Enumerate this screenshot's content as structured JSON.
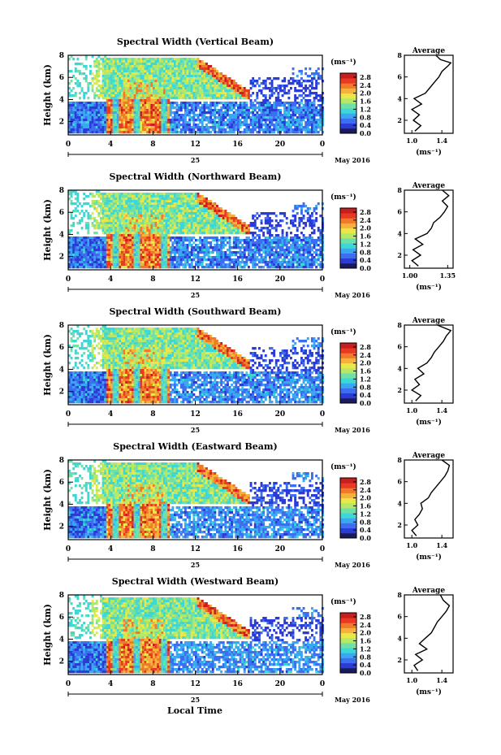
{
  "chart_data": {
    "type": "heatmap",
    "colors": {
      "scale": [
        "#1a1a5c",
        "#2b3bd6",
        "#3b6ff0",
        "#39a8f0",
        "#3fd6d6",
        "#6fe0a8",
        "#b4e868",
        "#e8e84a",
        "#f5b23a",
        "#f07a2a",
        "#e83a22",
        "#c81e1e"
      ],
      "average_line": "#000000"
    },
    "shared": {
      "x_ticks": [
        "0",
        "4",
        "8",
        "12",
        "16",
        "20",
        "0"
      ],
      "day_label": "25",
      "month_label": "May 2016",
      "xlabel": "Local Time",
      "ylabel": "Height (km)",
      "y_ticks": [
        "2",
        "4",
        "6",
        "8"
      ],
      "y_range_km": [
        0.8,
        8
      ],
      "x_range_hours": [
        0,
        24
      ],
      "colorbar_unit": "(ms⁻¹)",
      "colorbar_ticks": [
        "0.0",
        "0.4",
        "0.8",
        "1.2",
        "1.6",
        "2.0",
        "2.4",
        "2.8"
      ],
      "colorbar_range": [
        0.0,
        3.0
      ],
      "average_title": "Average",
      "average_xlabel": "(ms⁻¹)",
      "average_y_ticks": [
        "2",
        "4",
        "6",
        "8"
      ]
    },
    "panels": [
      {
        "title": "Spectral Width (Vertical Beam)",
        "average_x_ticks": [
          "1.0",
          "1.4"
        ],
        "average_xlim": [
          0.9,
          1.55
        ],
        "average_profile": [
          {
            "h": 1.0,
            "v": 1.04
          },
          {
            "h": 1.5,
            "v": 1.12
          },
          {
            "h": 2.0,
            "v": 1.02
          },
          {
            "h": 2.5,
            "v": 1.1
          },
          {
            "h": 3.0,
            "v": 1.0
          },
          {
            "h": 3.5,
            "v": 1.13
          },
          {
            "h": 4.0,
            "v": 1.03
          },
          {
            "h": 4.5,
            "v": 1.18
          },
          {
            "h": 5.0,
            "v": 1.24
          },
          {
            "h": 5.5,
            "v": 1.3
          },
          {
            "h": 6.0,
            "v": 1.36
          },
          {
            "h": 6.5,
            "v": 1.4
          },
          {
            "h": 7.0,
            "v": 1.48
          },
          {
            "h": 7.3,
            "v": 1.52
          },
          {
            "h": 7.6,
            "v": 1.38
          },
          {
            "h": 8.0,
            "v": 1.32
          }
        ]
      },
      {
        "title": "Spectral Width (Northward Beam)",
        "average_x_ticks": [
          "1.00",
          "1.35"
        ],
        "average_xlim": [
          0.95,
          1.4
        ],
        "average_profile": [
          {
            "h": 1.0,
            "v": 1.08
          },
          {
            "h": 1.5,
            "v": 1.02
          },
          {
            "h": 2.0,
            "v": 1.1
          },
          {
            "h": 2.5,
            "v": 1.03
          },
          {
            "h": 3.0,
            "v": 1.12
          },
          {
            "h": 3.5,
            "v": 1.05
          },
          {
            "h": 4.0,
            "v": 1.16
          },
          {
            "h": 4.5,
            "v": 1.2
          },
          {
            "h": 5.0,
            "v": 1.22
          },
          {
            "h": 5.5,
            "v": 1.28
          },
          {
            "h": 6.0,
            "v": 1.32
          },
          {
            "h": 6.5,
            "v": 1.35
          },
          {
            "h": 7.0,
            "v": 1.3
          },
          {
            "h": 7.5,
            "v": 1.36
          },
          {
            "h": 8.0,
            "v": 1.3
          }
        ]
      },
      {
        "title": "Spectral Width (Southward Beam)",
        "average_x_ticks": [
          "1.0",
          "1.4"
        ],
        "average_xlim": [
          0.9,
          1.55
        ],
        "average_profile": [
          {
            "h": 1.0,
            "v": 1.05
          },
          {
            "h": 1.5,
            "v": 1.12
          },
          {
            "h": 2.0,
            "v": 1.0
          },
          {
            "h": 2.5,
            "v": 1.1
          },
          {
            "h": 3.0,
            "v": 1.04
          },
          {
            "h": 3.5,
            "v": 1.16
          },
          {
            "h": 4.0,
            "v": 1.08
          },
          {
            "h": 4.5,
            "v": 1.2
          },
          {
            "h": 5.0,
            "v": 1.26
          },
          {
            "h": 5.5,
            "v": 1.3
          },
          {
            "h": 6.0,
            "v": 1.36
          },
          {
            "h": 6.5,
            "v": 1.42
          },
          {
            "h": 7.0,
            "v": 1.46
          },
          {
            "h": 7.5,
            "v": 1.52
          },
          {
            "h": 8.0,
            "v": 1.34
          }
        ]
      },
      {
        "title": "Spectral Width (Eastward Beam)",
        "average_x_ticks": [
          "1.0",
          "1.4"
        ],
        "average_xlim": [
          0.9,
          1.55
        ],
        "average_profile": [
          {
            "h": 1.0,
            "v": 1.06
          },
          {
            "h": 1.5,
            "v": 1.0
          },
          {
            "h": 2.0,
            "v": 1.08
          },
          {
            "h": 2.5,
            "v": 1.04
          },
          {
            "h": 3.0,
            "v": 1.1
          },
          {
            "h": 3.5,
            "v": 1.14
          },
          {
            "h": 4.0,
            "v": 1.12
          },
          {
            "h": 4.5,
            "v": 1.22
          },
          {
            "h": 5.0,
            "v": 1.26
          },
          {
            "h": 5.5,
            "v": 1.32
          },
          {
            "h": 6.0,
            "v": 1.38
          },
          {
            "h": 6.5,
            "v": 1.44
          },
          {
            "h": 7.0,
            "v": 1.48
          },
          {
            "h": 7.5,
            "v": 1.5
          },
          {
            "h": 8.0,
            "v": 1.4
          }
        ]
      },
      {
        "title": "Spectral Width (Westward Beam)",
        "average_x_ticks": [
          "1.0",
          "1.4"
        ],
        "average_xlim": [
          0.9,
          1.55
        ],
        "average_profile": [
          {
            "h": 1.0,
            "v": 1.08
          },
          {
            "h": 1.5,
            "v": 1.03
          },
          {
            "h": 2.0,
            "v": 1.14
          },
          {
            "h": 2.5,
            "v": 1.05
          },
          {
            "h": 3.0,
            "v": 1.2
          },
          {
            "h": 3.5,
            "v": 1.1
          },
          {
            "h": 4.0,
            "v": 1.18
          },
          {
            "h": 4.5,
            "v": 1.26
          },
          {
            "h": 5.0,
            "v": 1.3
          },
          {
            "h": 5.5,
            "v": 1.34
          },
          {
            "h": 6.0,
            "v": 1.4
          },
          {
            "h": 6.5,
            "v": 1.46
          },
          {
            "h": 7.0,
            "v": 1.5
          },
          {
            "h": 7.5,
            "v": 1.42
          },
          {
            "h": 8.0,
            "v": 1.38
          }
        ]
      }
    ]
  }
}
